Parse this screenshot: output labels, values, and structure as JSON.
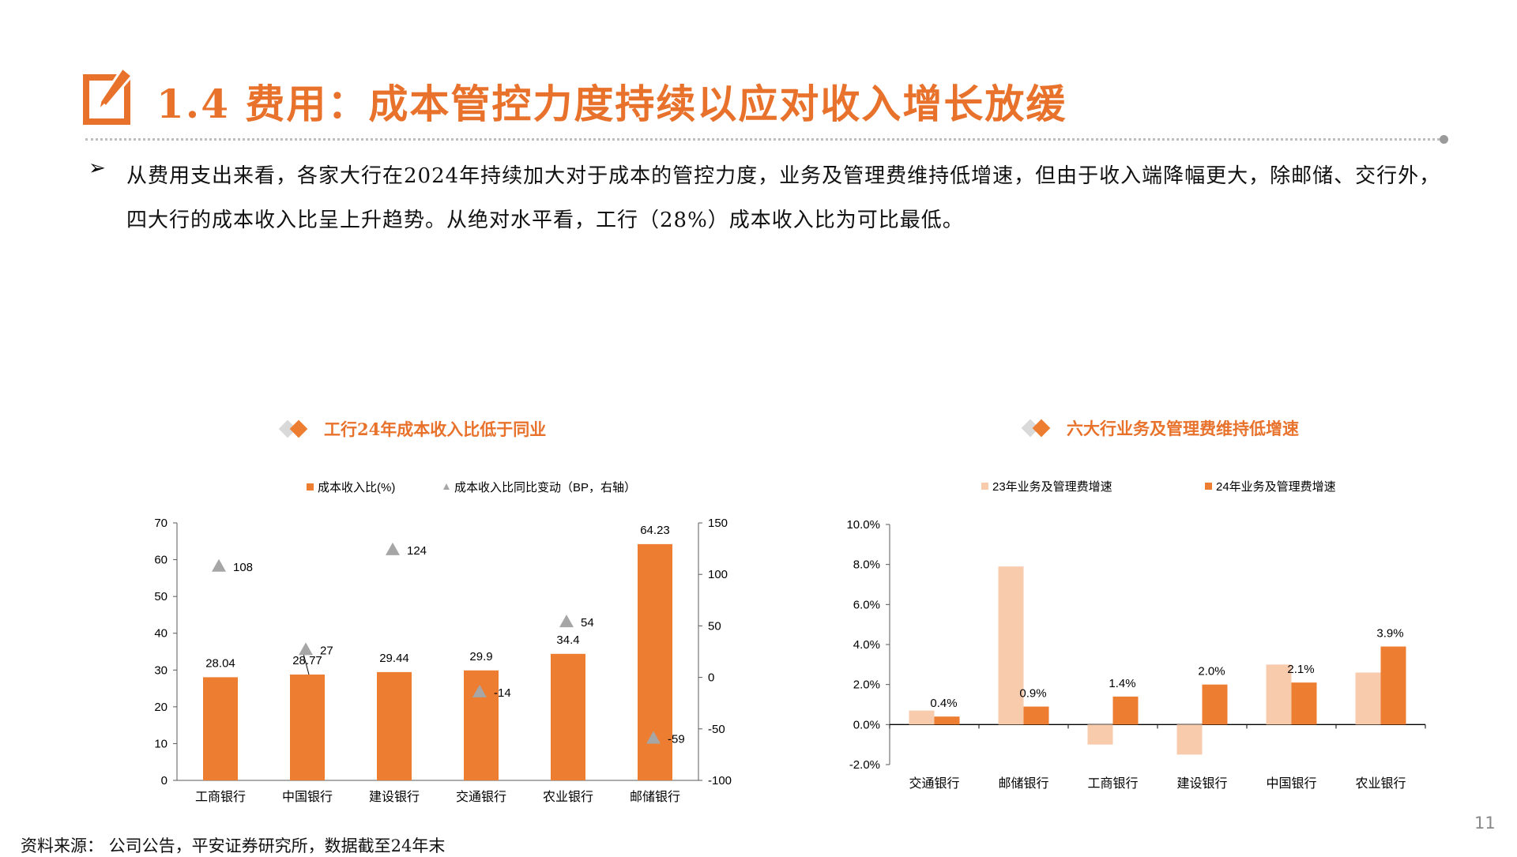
{
  "title": "1.4 费用：成本管控力度持续以应对收入增长放缓",
  "paragraph": "从费用支出来看，各家大行在2024年持续加大对于成本的管控力度，业务及管理费维持低增速，但由于收入端降幅更大，除邮储、交行外，四大行的成本收入比呈上升趋势。从绝对水平看，工行（28%）成本收入比为可比最低。",
  "bullet_glyph": "➢",
  "source": "资料来源： 公司公告，平安证券研究所，数据截至24年末",
  "page_number": "11",
  "colors": {
    "accent": "#ed7d31",
    "light": "#f8cbad",
    "marker": "#a6a6a6",
    "title": "#e8722c"
  },
  "chart_data": [
    {
      "type": "bar",
      "title": "工行24年成本收入比低于同业",
      "categories": [
        "工商银行",
        "中国银行",
        "建设银行",
        "交通银行",
        "农业银行",
        "邮储银行"
      ],
      "series": [
        {
          "name": "成本收入比(%)",
          "type": "bar",
          "axis": "left",
          "values": [
            28.04,
            28.77,
            29.44,
            29.9,
            34.4,
            64.23
          ],
          "labels": [
            "28.04",
            "28.77",
            "29.44",
            "29.9",
            "34.4",
            "64.23"
          ]
        },
        {
          "name": "成本收入比同比变动（BP，右轴）",
          "type": "scatter",
          "marker": "triangle",
          "axis": "right",
          "values": [
            108,
            27,
            124,
            -14,
            54,
            -59
          ],
          "labels": [
            "108",
            "27",
            "124",
            "-14",
            "54",
            "-59"
          ]
        }
      ],
      "ylim": [
        0,
        70
      ],
      "yticks": [
        "0",
        "10",
        "20",
        "30",
        "40",
        "50",
        "60",
        "70"
      ],
      "y2lim": [
        -100,
        150
      ],
      "y2ticks": [
        "-100",
        "-50",
        "0",
        "50",
        "100",
        "150"
      ],
      "legend": "top",
      "grid": false
    },
    {
      "type": "bar",
      "title": "六大行业务及管理费维持低增速",
      "categories": [
        "交通银行",
        "邮储银行",
        "工商银行",
        "建设银行",
        "中国银行",
        "农业银行"
      ],
      "series": [
        {
          "name": "23年业务及管理费增速",
          "values": [
            0.7,
            7.9,
            -1.0,
            -1.5,
            3.0,
            2.6
          ]
        },
        {
          "name": "24年业务及管理费增速",
          "values": [
            0.4,
            0.9,
            1.4,
            2.0,
            2.1,
            3.9
          ],
          "labels": [
            "0.4%",
            "0.9%",
            "1.4%",
            "2.0%",
            "2.1%",
            "3.9%"
          ]
        }
      ],
      "ylim": [
        -2.0,
        10.0
      ],
      "yticks": [
        "-2.0%",
        "0.0%",
        "2.0%",
        "4.0%",
        "6.0%",
        "8.0%",
        "10.0%"
      ],
      "legend": "top",
      "grid": false
    }
  ]
}
